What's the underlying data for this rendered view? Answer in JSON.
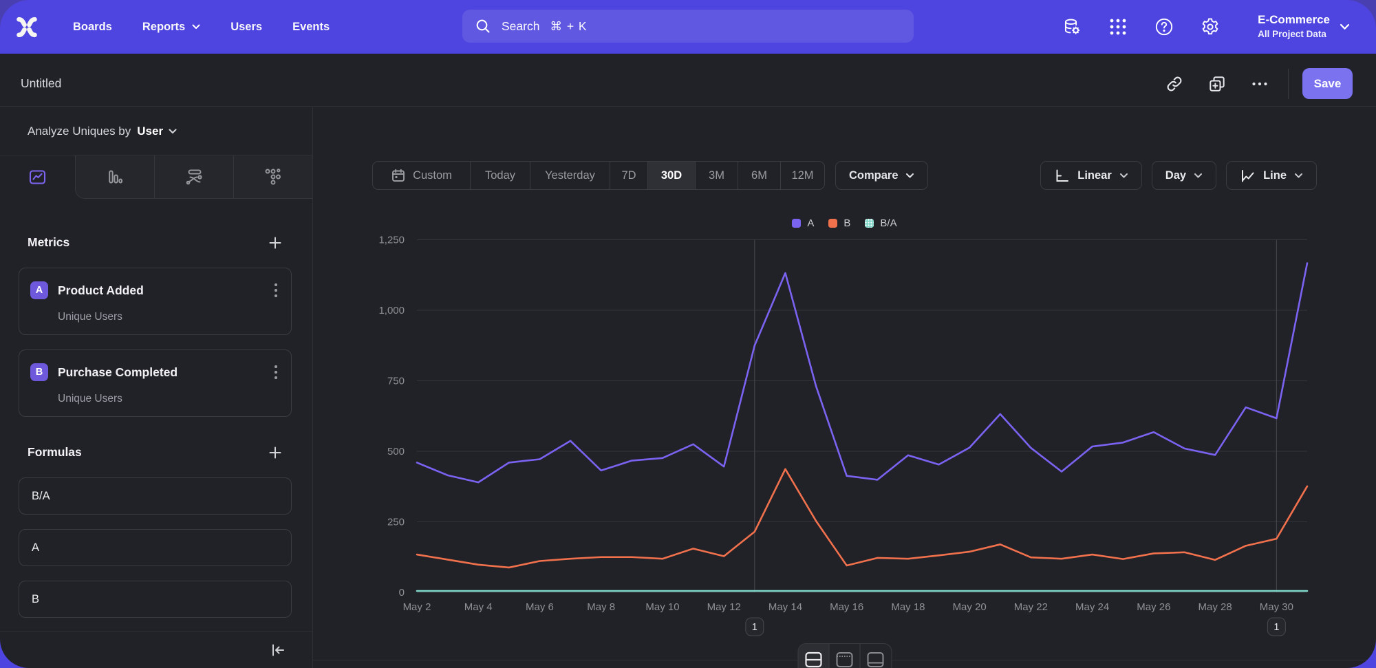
{
  "nav": {
    "items": [
      {
        "label": "Boards",
        "has_dropdown": false
      },
      {
        "label": "Reports",
        "has_dropdown": true
      },
      {
        "label": "Users",
        "has_dropdown": false
      },
      {
        "label": "Events",
        "has_dropdown": false
      }
    ],
    "search": {
      "label": "Search",
      "shortcut": "⌘ + K"
    },
    "right_icons": [
      "data-pipeline-icon",
      "apps-grid-icon",
      "help-icon",
      "settings-icon"
    ],
    "project": {
      "name": "E-Commerce",
      "scope": "All Project Data"
    }
  },
  "header": {
    "title": "Untitled",
    "actions": [
      "copy-link-icon",
      "duplicate-icon",
      "more-icon"
    ],
    "save_label": "Save"
  },
  "sidebar": {
    "analyze_label": "Analyze Uniques by",
    "analyze_value": "User",
    "tabs": [
      "insights",
      "bar",
      "flows",
      "retention"
    ],
    "selected_tab": "insights",
    "metrics_title": "Metrics",
    "metrics": [
      {
        "badge": "A",
        "name": "Product Added",
        "subtitle": "Unique Users"
      },
      {
        "badge": "B",
        "name": "Purchase Completed",
        "subtitle": "Unique Users"
      }
    ],
    "formulas_title": "Formulas",
    "formulas": [
      {
        "name": "B/A"
      },
      {
        "name": "A"
      },
      {
        "name": "B"
      }
    ]
  },
  "toolbar": {
    "ranges": [
      "Custom",
      "Today",
      "Yesterday",
      "7D",
      "30D",
      "3M",
      "6M",
      "12M"
    ],
    "selected_range": "30D",
    "compare_label": "Compare",
    "scale_label": "Linear",
    "granularity_label": "Day",
    "chart_type_label": "Line"
  },
  "view_toggle": [
    "split-view",
    "chart-only-view",
    "table-view"
  ],
  "view_toggle_selected": "split-view",
  "colors": {
    "nav_purple": "#4E44DF",
    "backdrop_purple": "#4A3FB0",
    "content_bg": "#212228",
    "save_purple": "#7B72F0",
    "badge_purple": "#6E59DD",
    "series_a": "#7B63F2",
    "series_b": "#F2714D",
    "series_ba": "#7ED7C9",
    "gridline": "#34353B",
    "annotation_line": "#47484E",
    "axis_text": "#8F9096"
  },
  "chart_data": {
    "type": "line",
    "title": "",
    "xlabel": "",
    "ylabel": "",
    "x": [
      "May 2",
      "May 3",
      "May 4",
      "May 5",
      "May 6",
      "May 7",
      "May 8",
      "May 9",
      "May 10",
      "May 11",
      "May 12",
      "May 13",
      "May 14",
      "May 15",
      "May 16",
      "May 17",
      "May 18",
      "May 19",
      "May 20",
      "May 21",
      "May 22",
      "May 23",
      "May 24",
      "May 25",
      "May 26",
      "May 27",
      "May 28",
      "May 29",
      "May 30",
      "May 31"
    ],
    "xtick_labels": [
      "May 2",
      "May 4",
      "May 6",
      "May 8",
      "May 10",
      "May 12",
      "May 14",
      "May 16",
      "May 18",
      "May 20",
      "May 22",
      "May 24",
      "May 26",
      "May 28",
      "May 30"
    ],
    "yticks": [
      0,
      250,
      500,
      750,
      1000,
      1250
    ],
    "ylim": [
      0,
      1250
    ],
    "grid": "horizontal",
    "legend_position": "top",
    "series": [
      {
        "name": "A",
        "color": "#7B63F2",
        "values": [
          460,
          415,
          390,
          460,
          472,
          537,
          432,
          467,
          476,
          525,
          446,
          875,
          1132,
          731,
          413,
          399,
          486,
          453,
          513,
          632,
          512,
          428,
          517,
          531,
          568,
          510,
          487,
          656,
          617,
          1167
        ]
      },
      {
        "name": "B",
        "color": "#F2714D",
        "values": [
          134,
          116,
          98,
          88,
          111,
          119,
          125,
          125,
          119,
          155,
          128,
          215,
          437,
          253,
          95,
          122,
          119,
          131,
          144,
          170,
          124,
          119,
          134,
          118,
          138,
          142,
          115,
          165,
          190,
          376
        ]
      },
      {
        "name": "B/A",
        "color": "#7ED7C9",
        "pattern": "dots",
        "values": [
          0.29,
          0.28,
          0.25,
          0.19,
          0.24,
          0.22,
          0.29,
          0.27,
          0.25,
          0.3,
          0.29,
          0.25,
          0.39,
          0.35,
          0.23,
          0.31,
          0.24,
          0.29,
          0.28,
          0.27,
          0.24,
          0.28,
          0.26,
          0.22,
          0.24,
          0.28,
          0.24,
          0.25,
          0.31,
          0.32
        ]
      }
    ],
    "annotations": [
      {
        "label": "1",
        "x": "May 13"
      },
      {
        "label": "1",
        "x": "May 30"
      }
    ]
  }
}
